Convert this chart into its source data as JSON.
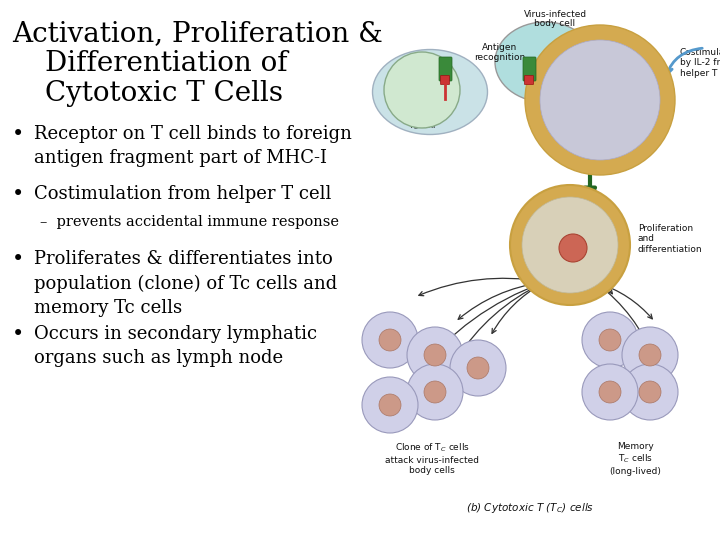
{
  "background_color": "#ffffff",
  "title_line1": "Activation, Proliferation &",
  "title_line2": "Differentiation of",
  "title_line3": "Cytotoxic T Cells",
  "title_fontsize": 20,
  "title_color": "#000000",
  "bullet_color": "#000000",
  "text_color": "#000000",
  "bullets": [
    {
      "text": "Receptor on T cell binds to foreign\nantigen fragment part of MHC-I",
      "fontsize": 13,
      "bullet": true
    },
    {
      "text": "Costimulation from helper T cell",
      "fontsize": 13,
      "bullet": true
    },
    {
      "text": "–  prevents accidental immune response",
      "fontsize": 10.5,
      "bullet": false,
      "indent": 0.04
    },
    {
      "text": "Proliferates & differentiates into\npopulation (clone) of Tc cells and\nmemory Tc cells",
      "fontsize": 13,
      "bullet": true
    },
    {
      "text": "Occurs in secondary lymphatic\norgans such as lymph node",
      "fontsize": 13,
      "bullet": true
    }
  ]
}
